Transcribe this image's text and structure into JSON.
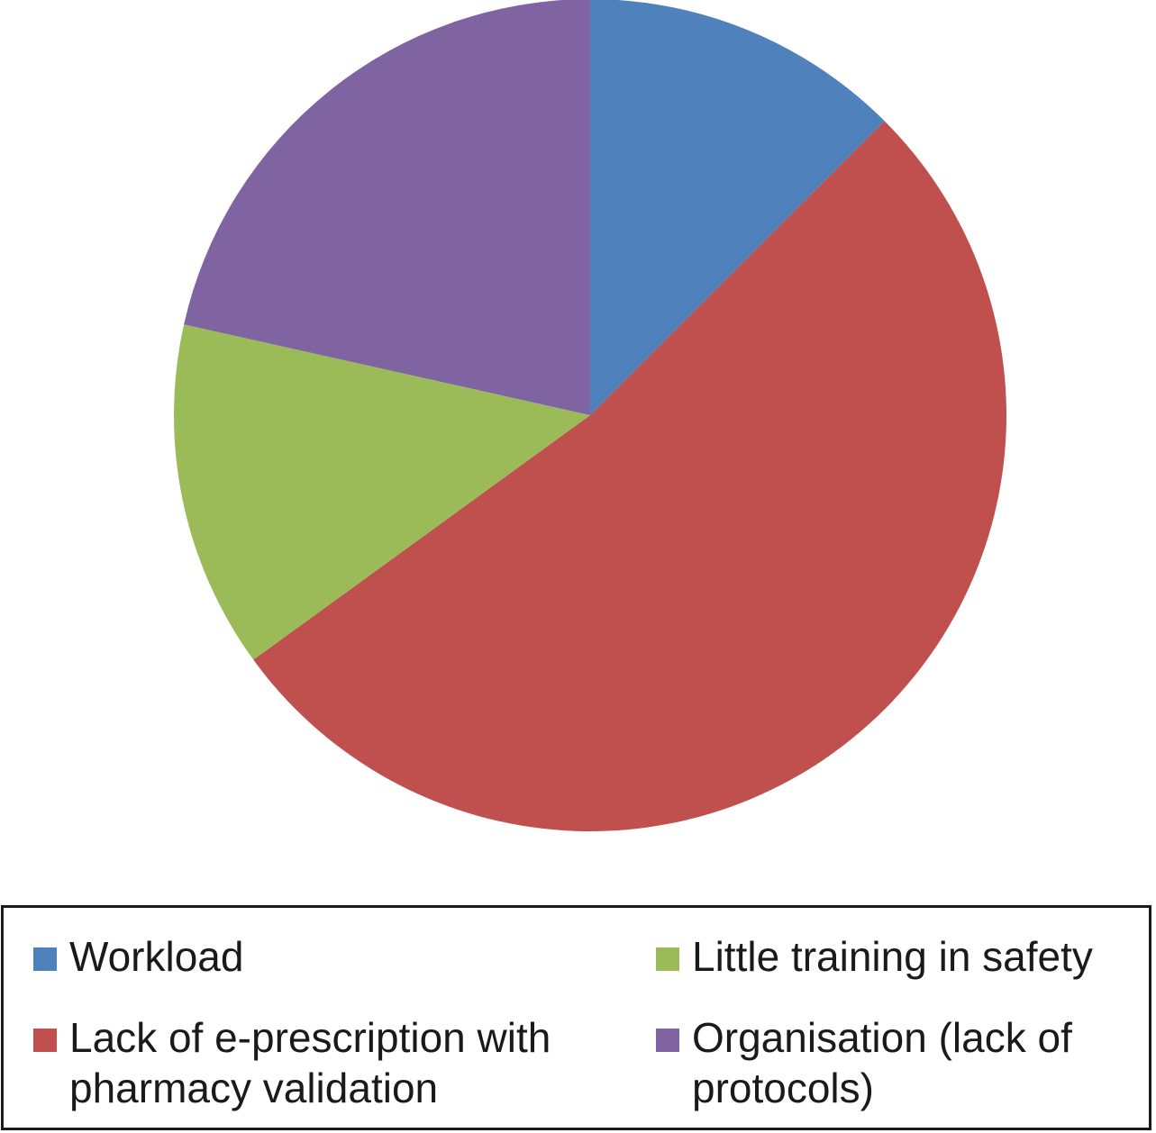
{
  "chart_data": {
    "type": "pie",
    "title": "",
    "categories": [
      "Workload",
      "Lack of e-prescription with pharmacy validation",
      "Little training in safety",
      "Organisation (lack of protocols)"
    ],
    "values": [
      12.5,
      52.5,
      13.5,
      21.5
    ],
    "colors": [
      "#4f81bd",
      "#c0504d",
      "#9bbb59",
      "#8064a2"
    ],
    "start_angle_deg": 0,
    "direction": "clockwise",
    "legend": {
      "placement": "bottom",
      "columns": 2,
      "order": [
        0,
        1,
        2,
        3
      ]
    }
  }
}
